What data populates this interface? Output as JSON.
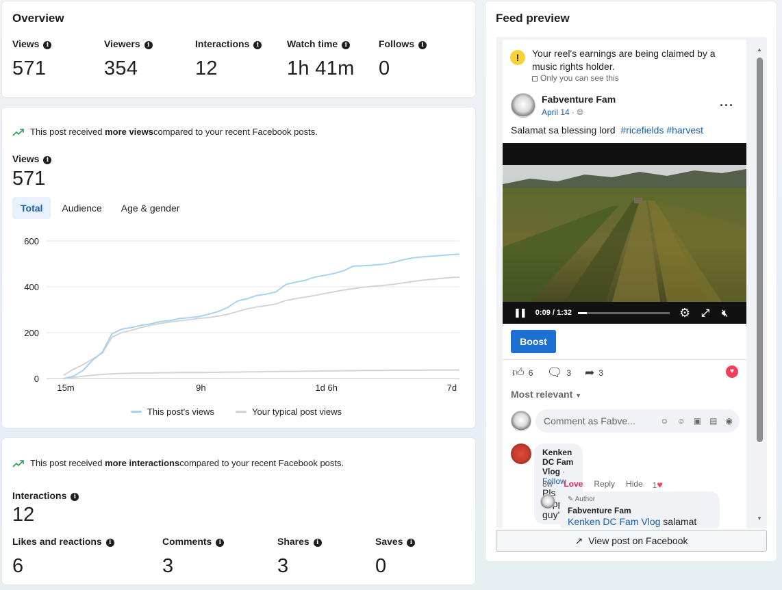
{
  "overview": {
    "title": "Overview",
    "stats": [
      {
        "label": "Views",
        "value": "571"
      },
      {
        "label": "Viewers",
        "value": "354"
      },
      {
        "label": "Interactions",
        "value": "12"
      },
      {
        "label": "Watch time",
        "value": "1h 41m"
      },
      {
        "label": "Follows",
        "value": "0"
      }
    ]
  },
  "views_section": {
    "notice_prefix": "This post received ",
    "notice_bold": "more views",
    "notice_suffix": " compared to your recent Facebook posts.",
    "label": "Views",
    "value": "571",
    "tabs": [
      "Total",
      "Audience",
      "Age & gender"
    ],
    "active_tab": "Total",
    "legend": [
      "This post's views",
      "Your typical post views"
    ]
  },
  "chart_data": {
    "type": "line",
    "x_tick_labels": [
      "15m",
      "9h",
      "1d 6h",
      "7d"
    ],
    "ylim": [
      0,
      600
    ],
    "y_ticks": [
      0,
      200,
      400,
      600
    ],
    "grid": true,
    "legend_position": "bottom",
    "series": [
      {
        "name": "This post's views",
        "color": "#a6d2f0",
        "values": [
          0,
          10,
          35,
          80,
          115,
          195,
          215,
          222,
          232,
          238,
          248,
          252,
          262,
          265,
          270,
          280,
          292,
          310,
          338,
          348,
          362,
          368,
          378,
          410,
          420,
          428,
          442,
          450,
          458,
          470,
          490,
          492,
          494,
          498,
          505,
          516,
          525,
          530,
          533,
          536,
          540,
          542
        ]
      },
      {
        "name": "Your typical post views",
        "color": "#d3d4d6",
        "values": [
          15,
          40,
          60,
          85,
          110,
          180,
          200,
          210,
          222,
          232,
          240,
          246,
          252,
          256,
          262,
          266,
          272,
          280,
          292,
          304,
          312,
          318,
          325,
          340,
          348,
          355,
          362,
          370,
          378,
          386,
          392,
          398,
          402,
          406,
          410,
          416,
          422,
          428,
          432,
          436,
          440,
          442
        ]
      },
      {
        "name": "",
        "color": "#d3d4d6",
        "values": [
          0,
          5,
          10,
          14,
          18,
          20,
          22,
          23,
          24,
          24,
          25,
          25,
          26,
          26,
          26,
          27,
          27,
          28,
          28,
          29,
          29,
          30,
          30,
          31,
          31,
          32,
          32,
          33,
          33,
          34,
          34,
          35,
          35,
          35,
          36,
          36,
          36,
          36,
          37,
          37,
          37,
          37
        ]
      }
    ]
  },
  "interactions_section": {
    "notice_prefix": "This post received ",
    "notice_bold": "more interactions",
    "notice_suffix": " compared to your recent Facebook posts.",
    "label": "Interactions",
    "value": "12",
    "stats": [
      {
        "label": "Likes and reactions",
        "value": "6"
      },
      {
        "label": "Comments",
        "value": "3"
      },
      {
        "label": "Shares",
        "value": "3"
      },
      {
        "label": "Saves",
        "value": "0"
      }
    ]
  },
  "feed": {
    "title": "Feed preview",
    "warning": "Your reel's earnings are being claimed by a music rights holder.",
    "warning_sub": "Only you can see this",
    "author": "Fabventure Fam",
    "date": "April 14 ·",
    "caption": "Salamat sa blessing lord",
    "hashtags": "#ricefields #harvest",
    "video_time": "0:09 / 1:32",
    "video_progress": 0.098,
    "boost": "Boost",
    "likes": "6",
    "comments": "3",
    "shares": "3",
    "most_relevant": "Most relevant",
    "comment_placeholder": "Comment as Fabve...",
    "comment1": {
      "name": "Kenken DC Fam Vlog",
      "follow": "· Follow",
      "text": "Pls support guy's",
      "time": "8w",
      "love": "Love",
      "reply": "Reply",
      "hide": "Hide",
      "count": "1"
    },
    "comment2": {
      "badge": "Author",
      "name": "Fabventure Fam",
      "mention": "Kenken DC Fam Vlog",
      "text": " salamat"
    },
    "view_on_fb": "View post on Facebook"
  }
}
